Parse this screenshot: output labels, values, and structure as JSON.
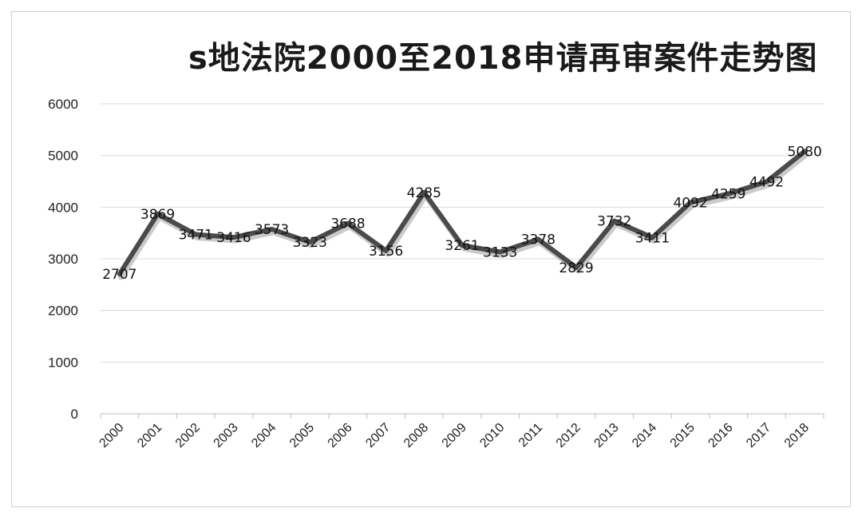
{
  "chart_data": {
    "type": "line",
    "title": "s地法院2000至2018申请再审案件走势图",
    "xlabel": "",
    "ylabel": "",
    "ylim": [
      0,
      6000
    ],
    "yticks": [
      0,
      1000,
      2000,
      3000,
      4000,
      5000,
      6000
    ],
    "grid": true,
    "legend": "none",
    "categories": [
      "2000",
      "2001",
      "2002",
      "2003",
      "2004",
      "2005",
      "2006",
      "2007",
      "2008",
      "2009",
      "2010",
      "2011",
      "2012",
      "2013",
      "2014",
      "2015",
      "2016",
      "2017",
      "2018"
    ],
    "series": [
      {
        "values": [
          2707,
          3869,
          3471,
          3416,
          3573,
          3323,
          3688,
          3156,
          4285,
          3261,
          3133,
          3378,
          2829,
          3732,
          3411,
          4092,
          4259,
          4492,
          5080
        ],
        "data_labels": [
          "2707",
          "3869",
          "3471",
          "3416",
          "3573",
          "3323",
          "3688",
          "3156",
          "4285",
          "3261",
          "3133",
          "3378",
          "2829",
          "3732",
          "3411",
          "4092",
          "4259",
          "4492",
          "5080"
        ]
      }
    ],
    "colors": {
      "line": "#4a4a4a",
      "shadow": "#bdbdbd",
      "grid": "#d9d9d9",
      "axis": "#bfbfbf"
    }
  }
}
